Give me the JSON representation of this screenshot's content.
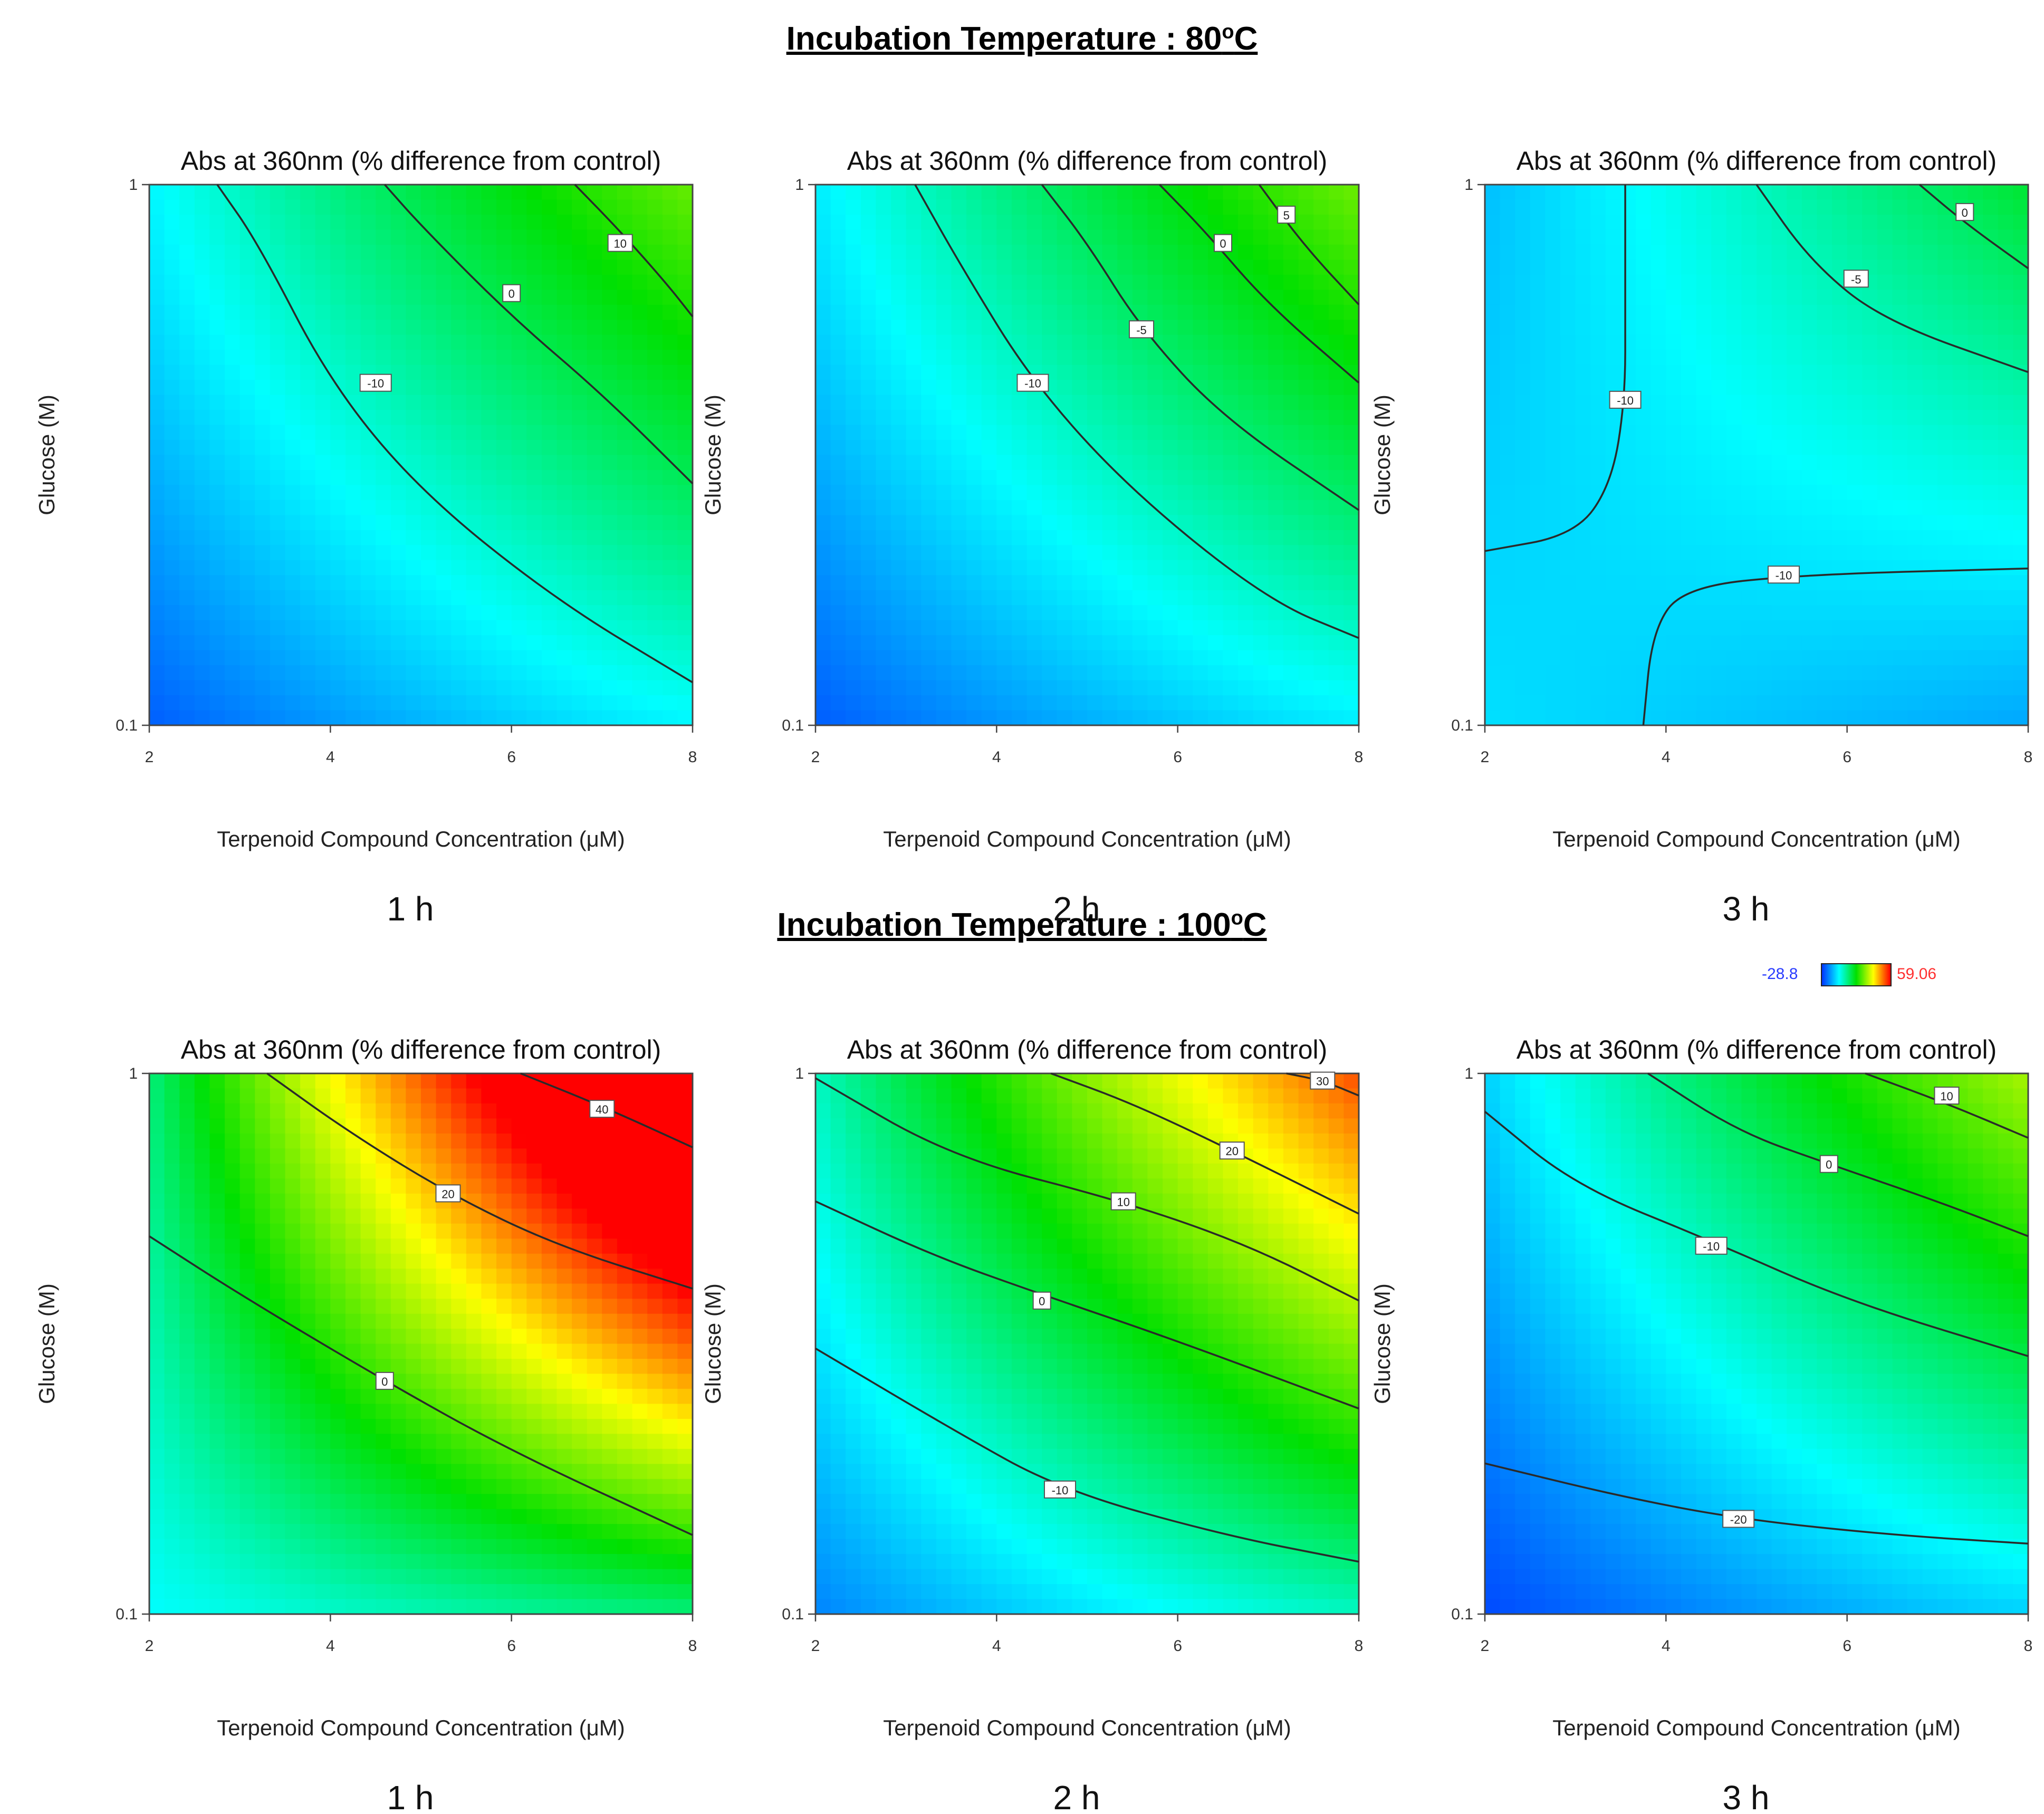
{
  "headings": {
    "top": {
      "prefix": "Incubation Temperature : 80",
      "sup": "o",
      "suffix": "C"
    },
    "bottom": {
      "prefix": "Incubation Temperature : 100",
      "sup": "o",
      "suffix": "C"
    }
  },
  "legend": {
    "min_label": "-28.8",
    "max_label": "59.06",
    "min": -28.8,
    "max": 59.06,
    "colors": [
      "#0033ff",
      "#00ffff",
      "#00e000",
      "#ffff00",
      "#ff0000"
    ]
  },
  "chart_data": [
    {
      "type": "heatmap",
      "panel": "80C-1h",
      "title": "Abs at 360nm (% difference from control)",
      "xlabel": "Terpenoid Compound Concentration (μM)",
      "ylabel": "Glucose (M)",
      "xlim": [
        2,
        8
      ],
      "ylim": [
        0.1,
        1
      ],
      "yscale": "log",
      "xticks": [
        "2",
        "4",
        "6",
        "8"
      ],
      "yticks": [
        "0.1",
        "1"
      ],
      "caption": "1 h",
      "surface": {
        "model": "hyperbolic",
        "min": -26,
        "max": 12,
        "center": -8,
        "cc": [
          -2.5,
          0,
          0,
          0,
          8
        ]
      },
      "contours": [
        {
          "label": "-10",
          "points": [
            [
              2.75,
              1.0
            ],
            [
              3.2,
              0.78
            ],
            [
              4.0,
              0.43
            ],
            [
              5.0,
              0.27
            ],
            [
              6.5,
              0.17
            ],
            [
              8.0,
              0.12
            ]
          ],
          "label_pos": [
            4.5,
            0.43
          ]
        },
        {
          "label": "0",
          "points": [
            [
              4.6,
              1.0
            ],
            [
              5.0,
              0.84
            ],
            [
              6.0,
              0.57
            ],
            [
              7.0,
              0.41
            ],
            [
              8.0,
              0.28
            ]
          ],
          "label_pos": [
            6.0,
            0.63
          ]
        },
        {
          "label": "10",
          "points": [
            [
              6.7,
              1.0
            ],
            [
              7.2,
              0.82
            ],
            [
              7.7,
              0.66
            ],
            [
              8.0,
              0.57
            ]
          ],
          "label_pos": [
            7.2,
            0.78
          ]
        }
      ]
    },
    {
      "type": "heatmap",
      "panel": "80C-2h",
      "title": "Abs at 360nm (% difference from control)",
      "xlabel": "Terpenoid Compound Concentration (μM)",
      "ylabel": "Glucose (M)",
      "xlim": [
        2,
        8
      ],
      "ylim": [
        0.1,
        1
      ],
      "yscale": "log",
      "xticks": [
        "2",
        "4",
        "6",
        "8"
      ],
      "yticks": [
        "0.1",
        "1"
      ],
      "caption": "2 h",
      "surface": {
        "model": "hyperbolic",
        "min": -26,
        "max": 12,
        "center": -9,
        "cc": [
          -3,
          0,
          0,
          0,
          7
        ]
      },
      "contours": [
        {
          "label": "-10",
          "points": [
            [
              3.1,
              1.0
            ],
            [
              3.6,
              0.71
            ],
            [
              4.4,
              0.43
            ],
            [
              5.5,
              0.27
            ],
            [
              7.0,
              0.17
            ],
            [
              8.0,
              0.145
            ]
          ],
          "label_pos": [
            4.4,
            0.43
          ]
        },
        {
          "label": "-5",
          "points": [
            [
              4.5,
              1.0
            ],
            [
              5.0,
              0.78
            ],
            [
              5.6,
              0.54
            ],
            [
              6.5,
              0.37
            ],
            [
              8.0,
              0.25
            ]
          ],
          "label_pos": [
            5.6,
            0.54
          ]
        },
        {
          "label": "0",
          "points": [
            [
              5.8,
              1.0
            ],
            [
              6.3,
              0.82
            ],
            [
              7.0,
              0.6
            ],
            [
              8.0,
              0.43
            ]
          ],
          "label_pos": [
            6.5,
            0.78
          ]
        },
        {
          "label": "5",
          "points": [
            [
              6.9,
              1.0
            ],
            [
              7.4,
              0.77
            ],
            [
              8.0,
              0.6
            ]
          ],
          "label_pos": [
            7.2,
            0.88
          ]
        }
      ]
    },
    {
      "type": "heatmap",
      "panel": "80C-3h",
      "title": "Abs at 360nm (% difference from control)",
      "xlabel": "Terpenoid Compound Concentration (μM)",
      "ylabel": "Glucose (M)",
      "xlim": [
        2,
        8
      ],
      "ylim": [
        0.1,
        1
      ],
      "yscale": "log",
      "xticks": [
        "2",
        "4",
        "6",
        "8"
      ],
      "yticks": [
        "0.1",
        "1"
      ],
      "caption": "3 h",
      "surface": {
        "model": "saddle",
        "min": -22,
        "max": 6,
        "center": -9,
        "sx": 1.5,
        "sy": 0.45,
        "ax": -0.8,
        "ay": -0.3
      },
      "contours": [
        {
          "label": "-10",
          "points": [
            [
              3.55,
              1.0
            ],
            [
              3.55,
              0.6
            ],
            [
              3.55,
              0.4
            ],
            [
              3.4,
              0.28
            ],
            [
              3.0,
              0.225
            ],
            [
              2.0,
              0.21
            ]
          ],
          "label_pos": [
            3.55,
            0.4
          ]
        },
        {
          "label": "-10",
          "points": [
            [
              3.75,
              0.1
            ],
            [
              3.85,
              0.15
            ],
            [
              4.2,
              0.18
            ],
            [
              5.5,
              0.19
            ],
            [
              8.0,
              0.195
            ]
          ],
          "label_pos": [
            5.3,
            0.19
          ]
        },
        {
          "label": "-5",
          "points": [
            [
              5.0,
              1.0
            ],
            [
              5.6,
              0.72
            ],
            [
              6.4,
              0.56
            ],
            [
              8.0,
              0.45
            ]
          ],
          "label_pos": [
            6.1,
            0.67
          ]
        },
        {
          "label": "0",
          "points": [
            [
              6.8,
              1.0
            ],
            [
              7.3,
              0.85
            ],
            [
              8.0,
              0.7
            ]
          ],
          "label_pos": [
            7.3,
            0.89
          ]
        }
      ]
    },
    {
      "type": "heatmap",
      "panel": "100C-1h",
      "title": "Abs at 360nm (% difference from control)",
      "xlabel": "Terpenoid Compound Concentration (μM)",
      "ylabel": "Glucose (M)",
      "xlim": [
        2,
        8
      ],
      "ylim": [
        0.1,
        1
      ],
      "yscale": "log",
      "xticks": [
        "2",
        "4",
        "6",
        "8"
      ],
      "yticks": [
        "0.1",
        "1"
      ],
      "caption": "1 h",
      "surface": {
        "model": "hyperbolic",
        "min": -8,
        "max": 59,
        "center": 4,
        "cc": [
          -1.5,
          0,
          0.3,
          0,
          15
        ]
      },
      "contours": [
        {
          "label": "0",
          "points": [
            [
              2.0,
              0.5
            ],
            [
              3.0,
              0.39
            ],
            [
              4.6,
              0.27
            ],
            [
              6.0,
              0.2
            ],
            [
              8.0,
              0.14
            ]
          ],
          "label_pos": [
            4.6,
            0.27
          ]
        },
        {
          "label": "20",
          "points": [
            [
              3.3,
              1.0
            ],
            [
              4.2,
              0.78
            ],
            [
              5.3,
              0.6
            ],
            [
              6.5,
              0.48
            ],
            [
              8.0,
              0.4
            ]
          ],
          "label_pos": [
            5.3,
            0.6
          ]
        },
        {
          "label": "40",
          "points": [
            [
              6.1,
              1.0
            ],
            [
              7.0,
              0.87
            ],
            [
              8.0,
              0.73
            ]
          ],
          "label_pos": [
            7.0,
            0.86
          ]
        }
      ]
    },
    {
      "type": "heatmap",
      "panel": "100C-2h",
      "title": "Abs at 360nm (% difference from control)",
      "xlabel": "Terpenoid Compound Concentration (μM)",
      "ylabel": "Glucose (M)",
      "xlim": [
        2,
        8
      ],
      "ylim": [
        0.1,
        1
      ],
      "yscale": "log",
      "xticks": [
        "2",
        "4",
        "6",
        "8"
      ],
      "yticks": [
        "0.1",
        "1"
      ],
      "caption": "2 h",
      "surface": {
        "model": "hyperbolic",
        "min": -22,
        "max": 32,
        "center": -2,
        "cc": [
          -2,
          0,
          0.2,
          0,
          12
        ]
      },
      "contours": [
        {
          "label": "-10",
          "points": [
            [
              2.0,
              0.31
            ],
            [
              3.5,
              0.22
            ],
            [
              4.7,
              0.17
            ],
            [
              6.5,
              0.14
            ],
            [
              8.0,
              0.125
            ]
          ],
          "label_pos": [
            4.7,
            0.17
          ]
        },
        {
          "label": "0",
          "points": [
            [
              2.0,
              0.58
            ],
            [
              3.3,
              0.46
            ],
            [
              4.5,
              0.39
            ],
            [
              6.0,
              0.32
            ],
            [
              8.0,
              0.24
            ]
          ],
          "label_pos": [
            4.5,
            0.38
          ]
        },
        {
          "label": "10",
          "points": [
            [
              2.0,
              0.98
            ],
            [
              3.5,
              0.7
            ],
            [
              5.4,
              0.58
            ],
            [
              6.8,
              0.48
            ],
            [
              8.0,
              0.38
            ]
          ],
          "label_pos": [
            5.4,
            0.58
          ]
        },
        {
          "label": "20",
          "points": [
            [
              4.6,
              1.0
            ],
            [
              5.5,
              0.88
            ],
            [
              6.6,
              0.72
            ],
            [
              8.0,
              0.55
            ]
          ],
          "label_pos": [
            6.6,
            0.72
          ]
        },
        {
          "label": "30",
          "points": [
            [
              7.2,
              1.0
            ],
            [
              7.6,
              0.97
            ],
            [
              8.0,
              0.91
            ]
          ],
          "label_pos": [
            7.6,
            0.97
          ]
        }
      ]
    },
    {
      "type": "heatmap",
      "panel": "100C-3h",
      "title": "Abs at 360nm (% difference from control)",
      "xlabel": "Terpenoid Compound Concentration (μM)",
      "ylabel": "Glucose (M)",
      "xlim": [
        2,
        8
      ],
      "ylim": [
        0.1,
        1
      ],
      "yscale": "log",
      "xticks": [
        "2",
        "4",
        "6",
        "8"
      ],
      "yticks": [
        "0.1",
        "1"
      ],
      "caption": "3 h",
      "surface": {
        "model": "hyperbolic",
        "min": -28,
        "max": 14,
        "center": -12,
        "cc": [
          -2,
          0,
          0.3,
          0,
          9
        ]
      },
      "contours": [
        {
          "label": "-20",
          "points": [
            [
              2.0,
              0.19
            ],
            [
              3.5,
              0.165
            ],
            [
              4.8,
              0.15
            ],
            [
              6.5,
              0.14
            ],
            [
              8.0,
              0.135
            ]
          ],
          "label_pos": [
            4.8,
            0.15
          ]
        },
        {
          "label": "-10",
          "points": [
            [
              2.0,
              0.85
            ],
            [
              3.0,
              0.62
            ],
            [
              4.5,
              0.49
            ],
            [
              6.0,
              0.38
            ],
            [
              8.0,
              0.3
            ]
          ],
          "label_pos": [
            4.5,
            0.48
          ]
        },
        {
          "label": "0",
          "points": [
            [
              3.8,
              1.0
            ],
            [
              4.8,
              0.78
            ],
            [
              5.8,
              0.68
            ],
            [
              7.0,
              0.58
            ],
            [
              8.0,
              0.5
            ]
          ],
          "label_pos": [
            5.8,
            0.68
          ]
        },
        {
          "label": "10",
          "points": [
            [
              6.2,
              1.0
            ],
            [
              7.1,
              0.88
            ],
            [
              8.0,
              0.76
            ]
          ],
          "label_pos": [
            7.1,
            0.91
          ]
        }
      ]
    }
  ]
}
